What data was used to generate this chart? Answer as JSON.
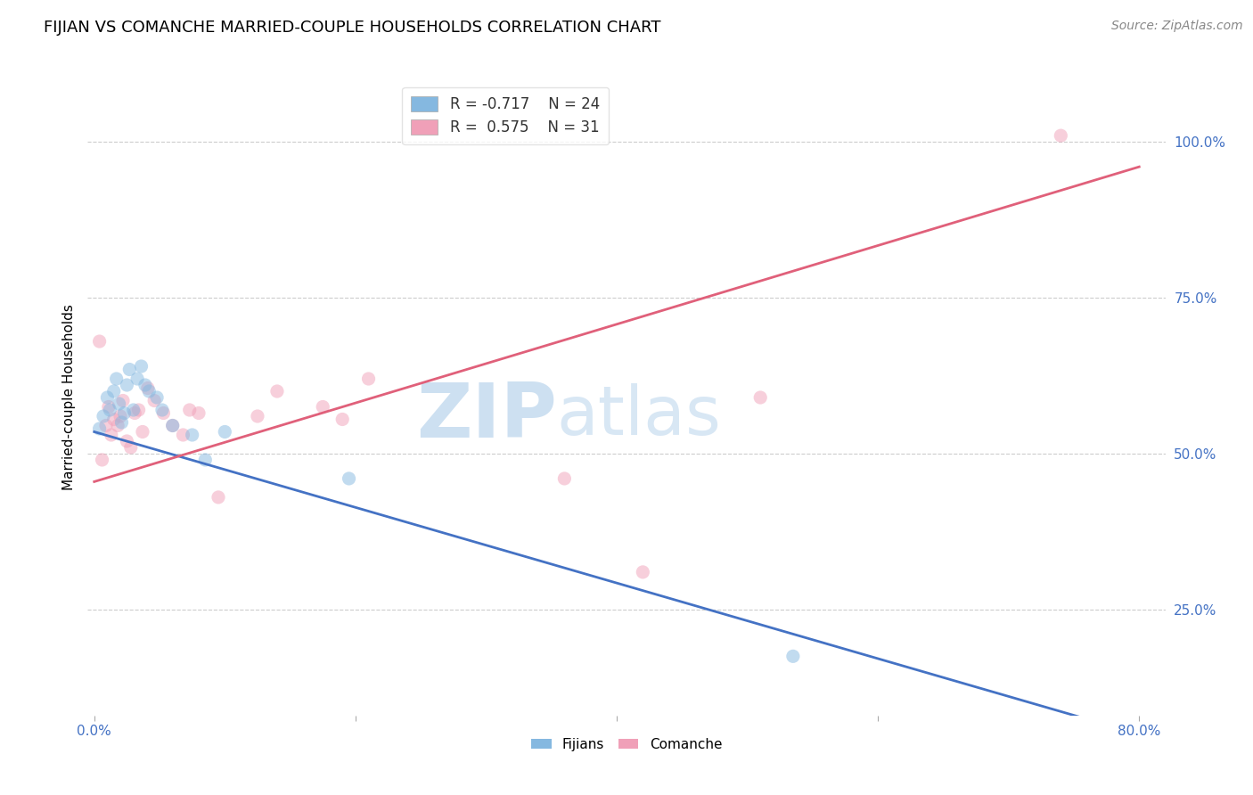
{
  "title": "FIJIAN VS COMANCHE MARRIED-COUPLE HOUSEHOLDS CORRELATION CHART",
  "source": "Source: ZipAtlas.com",
  "ylabel": "Married-couple Households",
  "xlim": [
    -0.005,
    0.82
  ],
  "ylim": [
    0.08,
    1.1
  ],
  "xticks": [
    0.0,
    0.2,
    0.4,
    0.6,
    0.8
  ],
  "xtick_labels": [
    "0.0%",
    "",
    "",
    "",
    "80.0%"
  ],
  "yticks": [
    0.25,
    0.5,
    0.75,
    1.0
  ],
  "ytick_labels": [
    "25.0%",
    "50.0%",
    "75.0%",
    "100.0%"
  ],
  "grid_color": "#cccccc",
  "bg_color": "#ffffff",
  "fijians_color": "#85b8e0",
  "comanche_color": "#f0a0b8",
  "fijians_line_color": "#4472c4",
  "comanche_line_color": "#e0607a",
  "fijians_R": -0.717,
  "fijians_N": 24,
  "comanche_R": 0.575,
  "comanche_N": 31,
  "fijians_x": [
    0.004,
    0.007,
    0.01,
    0.012,
    0.015,
    0.017,
    0.019,
    0.021,
    0.023,
    0.025,
    0.027,
    0.03,
    0.033,
    0.036,
    0.039,
    0.042,
    0.048,
    0.052,
    0.06,
    0.075,
    0.085,
    0.1,
    0.195,
    0.535
  ],
  "fijians_y": [
    0.54,
    0.56,
    0.59,
    0.57,
    0.6,
    0.62,
    0.58,
    0.55,
    0.565,
    0.61,
    0.635,
    0.57,
    0.62,
    0.64,
    0.61,
    0.6,
    0.59,
    0.57,
    0.545,
    0.53,
    0.49,
    0.535,
    0.46,
    0.175
  ],
  "comanche_x": [
    0.004,
    0.006,
    0.009,
    0.011,
    0.013,
    0.015,
    0.018,
    0.02,
    0.022,
    0.025,
    0.028,
    0.031,
    0.034,
    0.037,
    0.041,
    0.046,
    0.053,
    0.06,
    0.068,
    0.073,
    0.08,
    0.095,
    0.125,
    0.14,
    0.175,
    0.19,
    0.21,
    0.36,
    0.42,
    0.51,
    0.74
  ],
  "comanche_y": [
    0.68,
    0.49,
    0.545,
    0.575,
    0.53,
    0.555,
    0.545,
    0.56,
    0.585,
    0.52,
    0.51,
    0.565,
    0.57,
    0.535,
    0.605,
    0.585,
    0.565,
    0.545,
    0.53,
    0.57,
    0.565,
    0.43,
    0.56,
    0.6,
    0.575,
    0.555,
    0.62,
    0.46,
    0.31,
    0.59,
    1.01
  ],
  "fijians_line": [
    0.0,
    0.535,
    0.8,
    0.05
  ],
  "comanche_line": [
    0.0,
    0.455,
    0.8,
    0.96
  ],
  "watermark_zip": "ZIP",
  "watermark_atlas": "atlas",
  "zip_color": "#dce8f5",
  "atlas_color": "#c8dcf0",
  "title_fontsize": 13,
  "tick_fontsize": 11,
  "ylabel_fontsize": 11,
  "source_fontsize": 10,
  "legend_fontsize": 12,
  "marker_size": 120,
  "marker_alpha": 0.5,
  "line_width": 2.0
}
